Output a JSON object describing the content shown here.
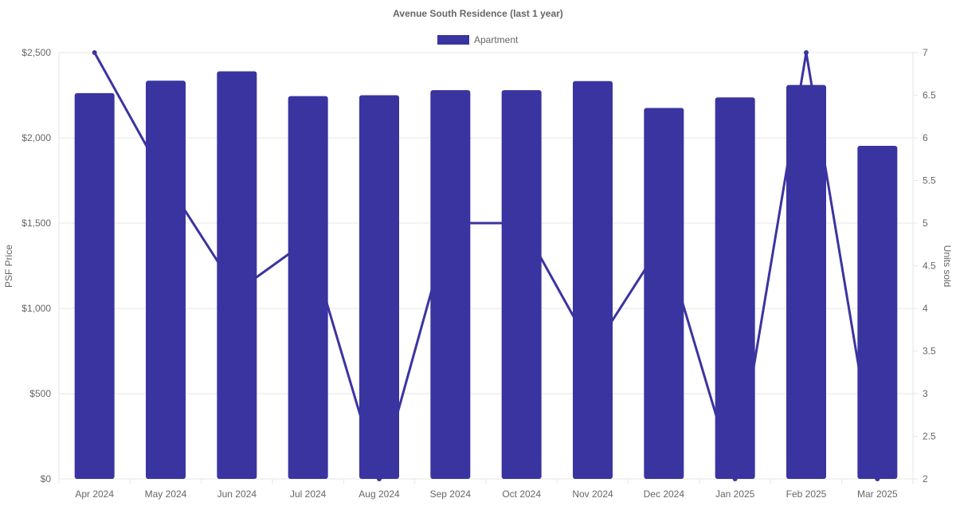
{
  "chart_data": {
    "type": "bar",
    "title": "Avenue South Residence (last 1 year)",
    "categories": [
      "Apr 2024",
      "May 2024",
      "Jun 2024",
      "Jul 2024",
      "Aug 2024",
      "Sep 2024",
      "Oct 2024",
      "Nov 2024",
      "Dec 2024",
      "Jan 2025",
      "Feb 2025",
      "Mar 2025"
    ],
    "series": [
      {
        "name": "Apartment",
        "type": "bar",
        "axis": "left",
        "values": [
          2262,
          2335,
          2390,
          2245,
          2250,
          2280,
          2280,
          2333,
          2175,
          2237,
          2310,
          1953
        ]
      },
      {
        "type": "line",
        "axis": "right",
        "values": [
          7,
          5.5,
          4.2,
          4.8,
          2,
          5,
          5,
          3.5,
          4.8,
          2,
          7,
          2
        ]
      }
    ],
    "ylabel": "PSF Price",
    "y2label": "Units sold",
    "ylim": [
      0,
      2500
    ],
    "y2lim": [
      2,
      7
    ],
    "yticks": [
      "$0",
      "$500",
      "$1,000",
      "$1,500",
      "$2,000",
      "$2,500"
    ],
    "y2ticks": [
      "2",
      "2.5",
      "3",
      "3.5",
      "4",
      "4.5",
      "5",
      "5.5",
      "6",
      "6.5",
      "7"
    ],
    "legend_position": "top-center",
    "grid": true,
    "colors": {
      "bar": "#3a34a0",
      "line": "#3a34a0",
      "grid": "#e6e6e6",
      "text": "#666666"
    }
  }
}
